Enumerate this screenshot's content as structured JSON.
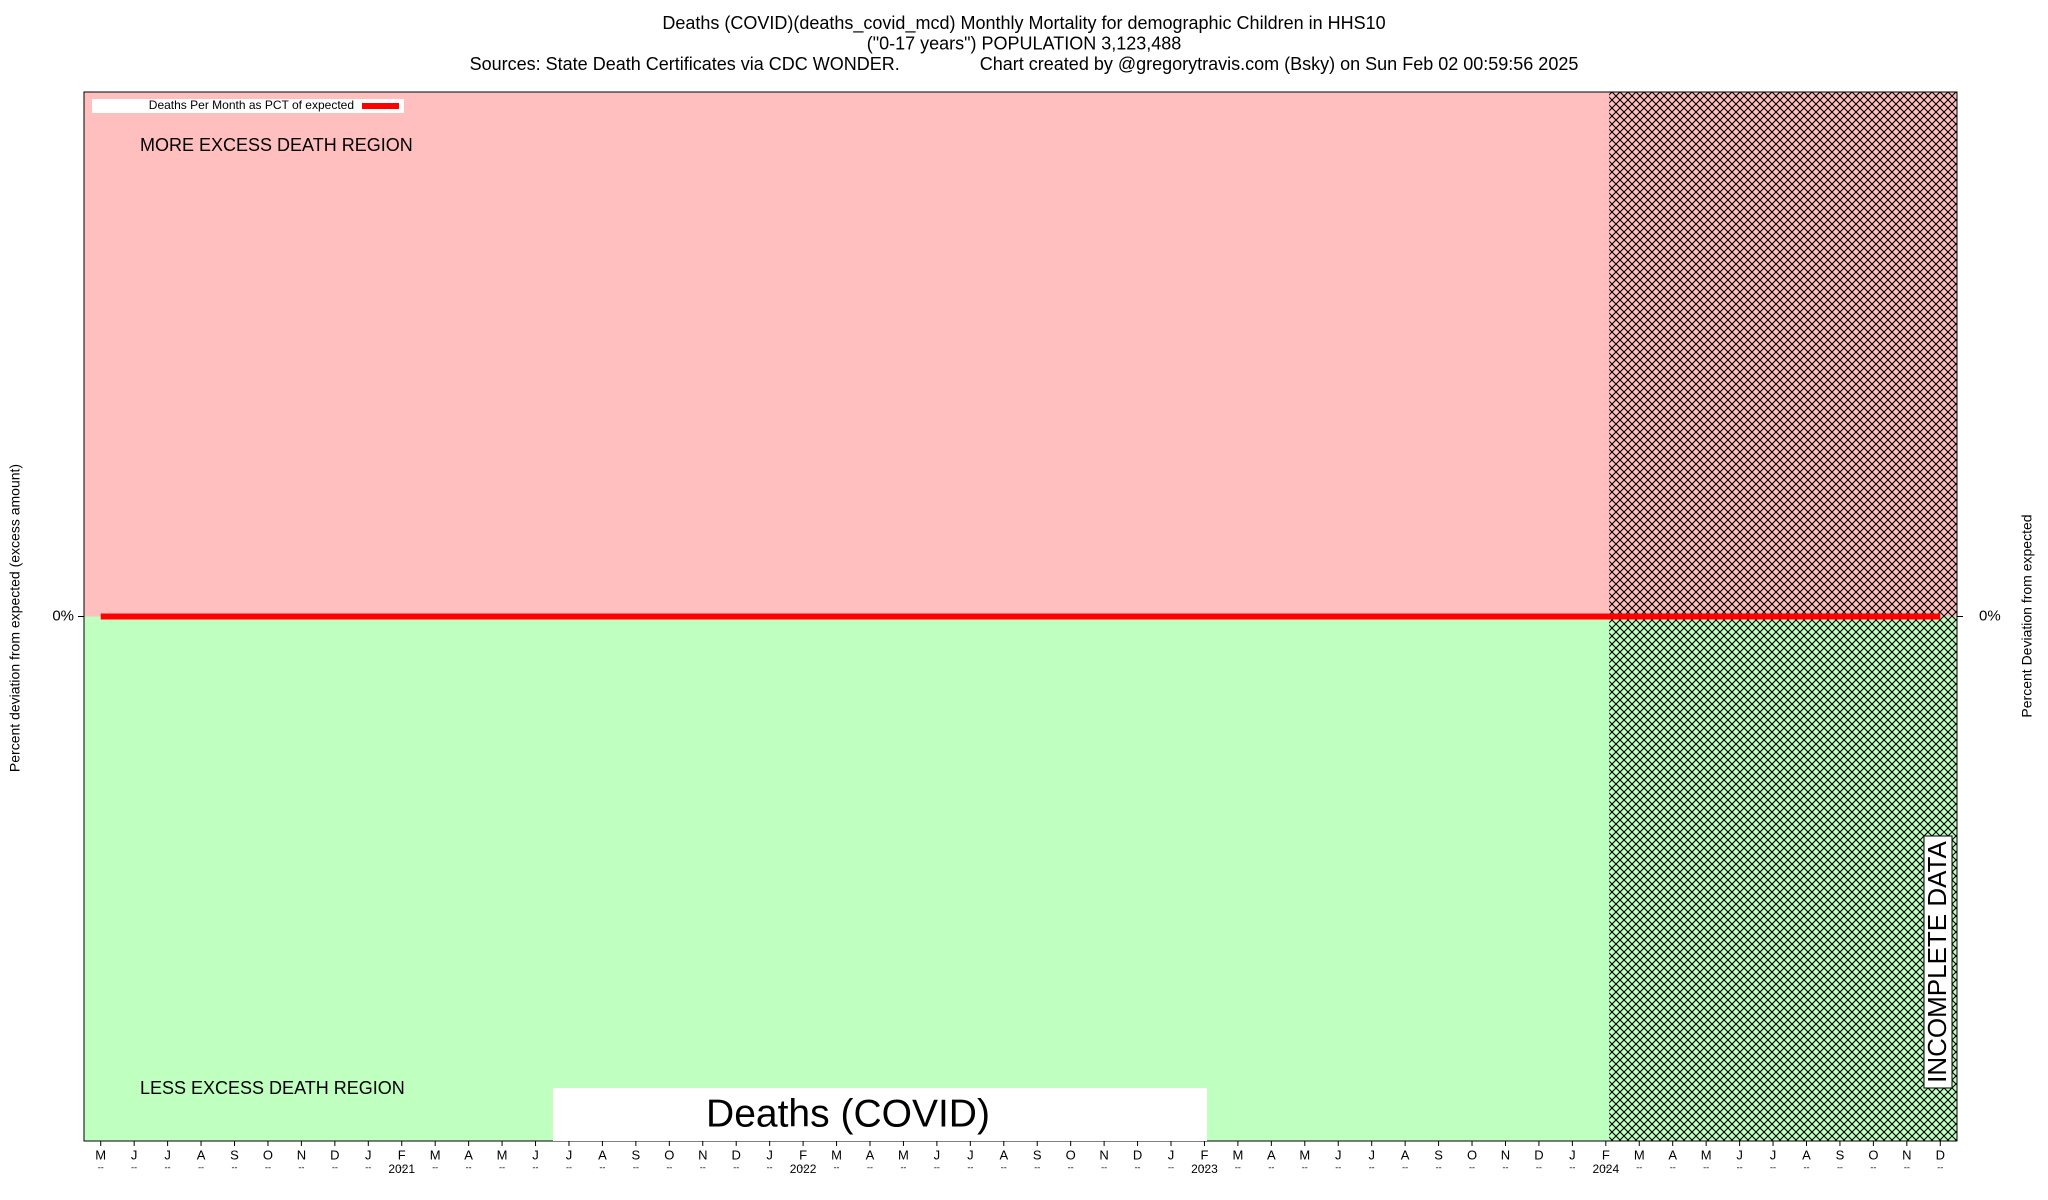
{
  "chart_data": {
    "type": "line",
    "title": [
      "Deaths (COVID)(deaths_covid_mcd) Monthly Mortality for demographic Children in HHS10",
      "(\"0-17 years\") POPULATION 3,123,488",
      "Sources: State Death Certificates via CDC WONDER.                Chart created by @gregorytravis.com (Bsky) on Sun Feb 02 00:59:56 2025"
    ],
    "ylabel": "Percent deviation from expected (excess amount)",
    "y2label": "Percent Deviation from expected",
    "annotations": {
      "upper_region": "MORE EXCESS DEATH REGION",
      "lower_region": "LESS EXCESS DEATH REGION",
      "incomplete": "INCOMPLETE DATA",
      "measure": "Deaths (COVID)"
    },
    "categories": [
      "M",
      "J",
      "J",
      "A",
      "S",
      "O",
      "N",
      "D",
      "J",
      "F",
      "M",
      "A",
      "M",
      "J",
      "J",
      "A",
      "S",
      "O",
      "N",
      "D",
      "J",
      "F",
      "M",
      "A",
      "M",
      "J",
      "J",
      "A",
      "S",
      "O",
      "N",
      "D",
      "J",
      "F",
      "M",
      "A",
      "M",
      "J",
      "J",
      "A",
      "S",
      "O",
      "N",
      "D",
      "J",
      "F",
      "M",
      "A",
      "M",
      "J",
      "J",
      "A",
      "S",
      "O",
      "N",
      "D"
    ],
    "category_sublabels": [
      "--",
      "--",
      "--",
      "--",
      "--",
      "--",
      "--",
      "--",
      "--",
      "--",
      "--",
      "--",
      "--",
      "--",
      "--",
      "--",
      "--",
      "--",
      "--",
      "--",
      "--",
      "--",
      "--",
      "--",
      "--",
      "--",
      "--",
      "--",
      "--",
      "--",
      "--",
      "--",
      "--",
      "--",
      "--",
      "--",
      "--",
      "--",
      "--",
      "--",
      "--",
      "--",
      "--",
      "--",
      "--",
      "--",
      "--",
      "--",
      "--",
      "--",
      "--",
      "--",
      "--",
      "--",
      "--",
      "--"
    ],
    "year_labels": [
      null,
      null,
      null,
      null,
      null,
      null,
      null,
      null,
      null,
      "2021",
      null,
      null,
      null,
      null,
      null,
      null,
      null,
      null,
      null,
      null,
      null,
      "2022",
      null,
      null,
      null,
      null,
      null,
      null,
      null,
      null,
      null,
      null,
      null,
      "2023",
      null,
      null,
      null,
      null,
      null,
      null,
      null,
      null,
      null,
      null,
      null,
      "2024",
      null,
      null,
      null,
      null,
      null,
      null,
      null,
      null,
      null,
      null
    ],
    "series": [
      {
        "name": "Deaths Per Month as PCT of expected",
        "color": "#ff0000",
        "values": [
          0,
          0,
          0,
          0,
          0,
          0,
          0,
          0,
          0,
          0,
          0,
          0,
          0,
          0,
          0,
          0,
          0,
          0,
          0,
          0,
          0,
          0,
          0,
          0,
          0,
          0,
          0,
          0,
          0,
          0,
          0,
          0,
          0,
          0,
          0,
          0,
          0,
          0,
          0,
          0,
          0,
          0,
          0,
          0,
          0,
          0,
          0,
          0,
          0,
          0,
          0,
          0,
          0,
          0,
          0,
          0
        ]
      }
    ],
    "ylim": [
      -100,
      100
    ],
    "yticks": [
      {
        "value": 0,
        "label": "0%"
      }
    ],
    "y2lim": [
      -100,
      100
    ],
    "y2ticks": [
      {
        "value": 0,
        "label": "0%"
      }
    ],
    "upper_color": "#ffbfbf",
    "lower_color": "#bfffbf"
  }
}
